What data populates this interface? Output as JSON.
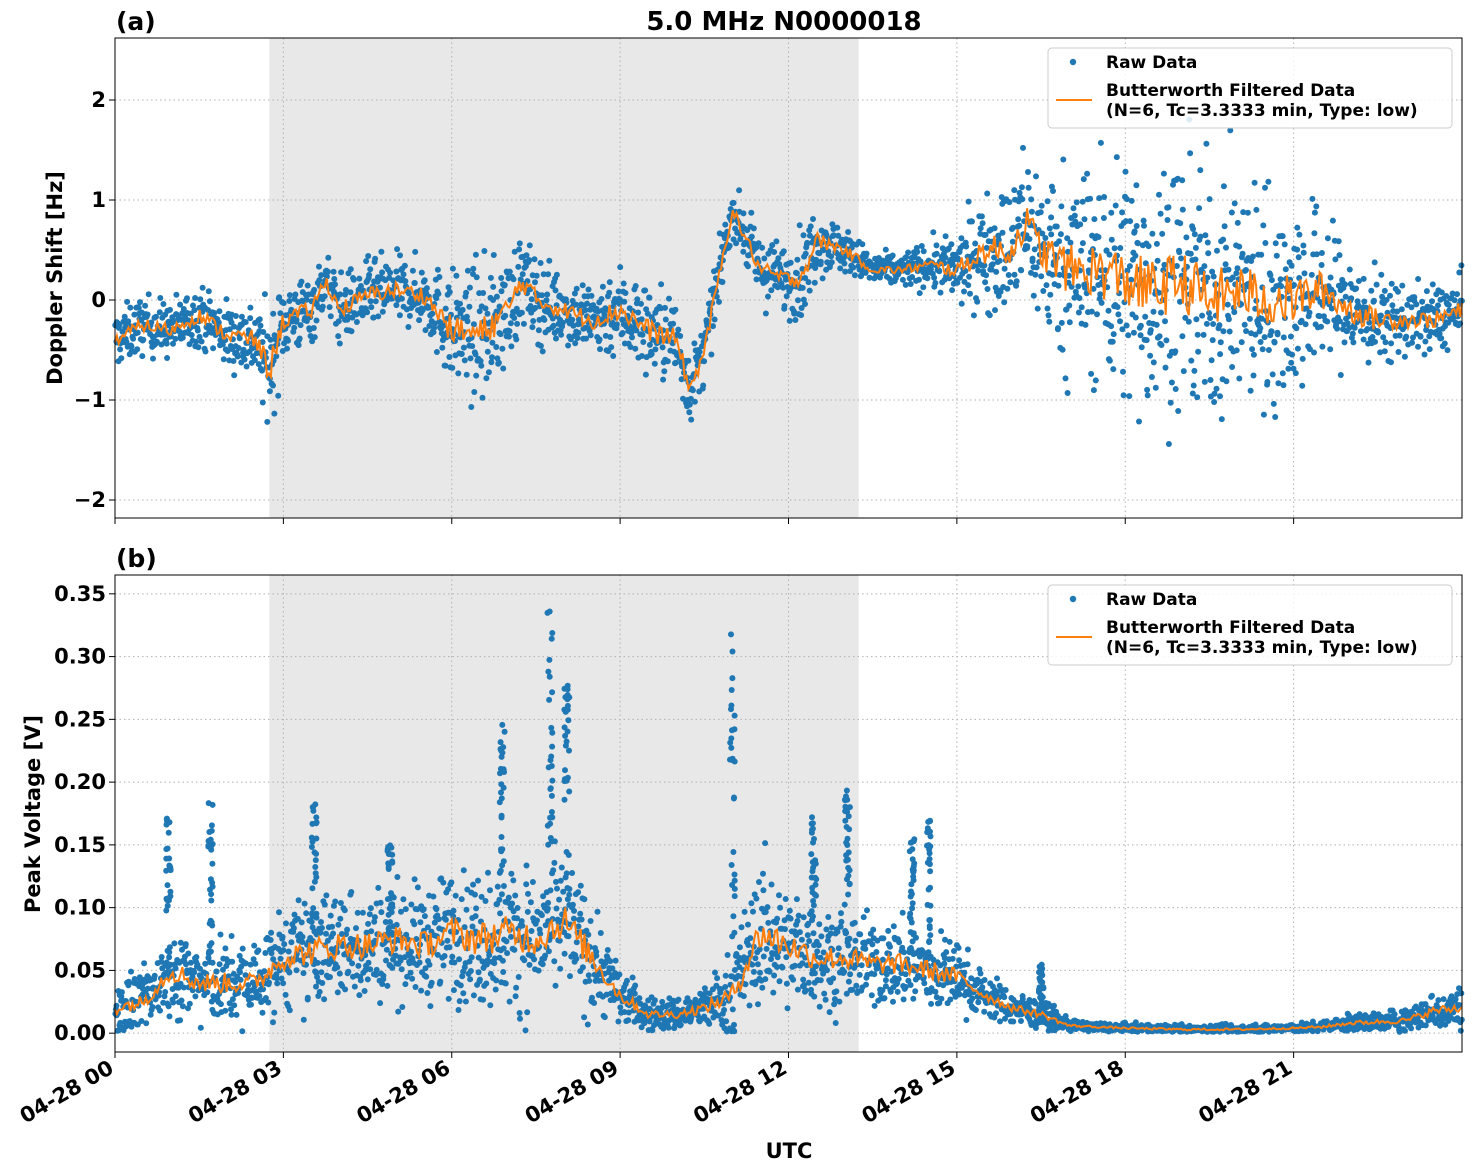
{
  "figure": {
    "title": "5.0 MHz N0000018",
    "xlabel": "UTC",
    "xticks": [
      "04-28 00",
      "04-28 03",
      "04-28 06",
      "04-28 09",
      "04-28 12",
      "04-28 15",
      "04-28 18",
      "04-28 21"
    ]
  },
  "colors": {
    "raw": "#1f77b4",
    "filtered": "#ff7f0e",
    "shade": "#e8e8e8"
  },
  "chart_data": [
    {
      "type": "scatter",
      "panel_label": "(a)",
      "title": "5.0 MHz N0000018",
      "xlabel": "",
      "ylabel": "Doppler Shift [Hz]",
      "xlim": [
        0,
        24
      ],
      "ylim": [
        -2.18,
        2.62
      ],
      "yticks": [
        -2,
        -1,
        0,
        1,
        2
      ],
      "yticklabels": [
        "−2",
        "−1",
        "0",
        "1",
        "2"
      ],
      "shaded_x": [
        2.75,
        13.25
      ],
      "grid": true,
      "legend_position": "upper right",
      "legend": [
        "Raw Data",
        "Butterworth Filtered Data",
        "(N=6, Tc=3.3333 min, Type: low)"
      ],
      "series": [
        {
          "name": "Butterworth Filtered Data (N=6, Tc=3.3333 min, Type: low)",
          "x": [
            0,
            0.5,
            1,
            1.5,
            2,
            2.5,
            2.75,
            3,
            3.5,
            3.75,
            4,
            4.5,
            5,
            5.5,
            6,
            6.5,
            7,
            7.25,
            7.5,
            8,
            8.5,
            9,
            9.5,
            10,
            10.25,
            10.5,
            11,
            11.5,
            12,
            12.25,
            12.5,
            13,
            13.5,
            14,
            14.5,
            15,
            15.5,
            16,
            16.2,
            16.5,
            17,
            17.5,
            18,
            18.5,
            19,
            19.5,
            20,
            20.5,
            21,
            21.5,
            22,
            22.5,
            23,
            23.5,
            24
          ],
          "y": [
            -0.4,
            -0.25,
            -0.3,
            -0.15,
            -0.35,
            -0.4,
            -0.7,
            -0.2,
            -0.1,
            0.2,
            -0.1,
            0.05,
            0.1,
            0.05,
            -0.3,
            -0.35,
            -0.1,
            0.2,
            0.0,
            -0.1,
            -0.2,
            -0.1,
            -0.3,
            -0.4,
            -0.9,
            -0.5,
            0.9,
            0.3,
            0.2,
            0.25,
            0.6,
            0.5,
            0.3,
            0.3,
            0.35,
            0.3,
            0.5,
            0.5,
            0.8,
            0.5,
            0.3,
            0.3,
            0.2,
            0.1,
            0.2,
            0.0,
            0.1,
            0.0,
            0.0,
            0.1,
            -0.1,
            -0.2,
            -0.2,
            -0.2,
            -0.1
          ]
        },
        {
          "name": "Raw Data",
          "x": [
            0,
            0.5,
            1,
            1.5,
            2,
            2.5,
            2.75,
            3,
            3.5,
            3.75,
            4,
            4.5,
            5,
            5.5,
            6,
            6.5,
            7,
            7.25,
            7.5,
            8,
            8.5,
            9,
            9.5,
            10,
            10.25,
            10.5,
            11,
            11.5,
            12,
            12.25,
            12.5,
            13,
            13.5,
            14,
            14.5,
            15,
            15.5,
            16,
            16.2,
            16.5,
            17,
            17.5,
            18,
            18.5,
            19,
            19.5,
            20,
            20.5,
            21,
            21.5,
            22,
            22.5,
            23,
            23.5,
            24
          ],
          "y": [
            -0.4,
            -0.25,
            -0.3,
            -0.15,
            -0.35,
            -0.4,
            -0.7,
            -0.2,
            -0.1,
            0.2,
            -0.1,
            0.05,
            0.1,
            0.05,
            -0.3,
            -0.35,
            -0.1,
            0.2,
            0.0,
            -0.1,
            -0.2,
            -0.1,
            -0.3,
            -0.4,
            -0.9,
            -0.5,
            0.9,
            0.3,
            0.2,
            0.25,
            0.6,
            0.5,
            0.3,
            0.3,
            0.35,
            0.3,
            0.5,
            0.5,
            0.8,
            0.5,
            0.3,
            0.3,
            0.2,
            0.1,
            0.2,
            0.0,
            0.1,
            0.0,
            0.0,
            0.1,
            -0.1,
            -0.2,
            -0.2,
            -0.2,
            -0.1
          ],
          "spread": [
            0.25,
            0.25,
            0.25,
            0.25,
            0.3,
            0.35,
            0.5,
            0.35,
            0.3,
            0.25,
            0.3,
            0.3,
            0.3,
            0.3,
            0.5,
            0.6,
            0.5,
            0.4,
            0.4,
            0.3,
            0.35,
            0.4,
            0.4,
            0.4,
            0.3,
            0.3,
            0.2,
            0.3,
            0.3,
            0.4,
            0.3,
            0.2,
            0.15,
            0.15,
            0.2,
            0.3,
            0.5,
            0.6,
            0.7,
            0.7,
            0.9,
            1.0,
            1.1,
            1.1,
            1.1,
            1.1,
            1.0,
            1.0,
            0.9,
            0.7,
            0.5,
            0.4,
            0.3,
            0.3,
            0.3
          ]
        }
      ]
    },
    {
      "type": "scatter",
      "panel_label": "(b)",
      "title": "",
      "xlabel": "UTC",
      "ylabel": "Peak Voltage [V]",
      "xlim": [
        0,
        24
      ],
      "ylim": [
        -0.015,
        0.365
      ],
      "yticks": [
        0,
        0.05,
        0.1,
        0.15,
        0.2,
        0.25,
        0.3,
        0.35
      ],
      "yticklabels": [
        "0.00",
        "0.05",
        "0.10",
        "0.15",
        "0.20",
        "0.25",
        "0.30",
        "0.35"
      ],
      "shaded_x": [
        2.75,
        13.25
      ],
      "grid": true,
      "legend_position": "upper right",
      "legend": [
        "Raw Data",
        "Butterworth Filtered Data",
        "(N=6, Tc=3.3333 min, Type: low)"
      ],
      "series": [
        {
          "name": "Butterworth Filtered Data (N=6, Tc=3.3333 min, Type: low)",
          "x": [
            0,
            0.5,
            1,
            1.5,
            2,
            2.5,
            3,
            3.5,
            4,
            4.5,
            5,
            5.5,
            6,
            6.5,
            7,
            7.5,
            8,
            8.5,
            9,
            9.5,
            10,
            10.5,
            11,
            11.5,
            12,
            12.5,
            13,
            13.5,
            14,
            14.5,
            15,
            15.5,
            16,
            16.5,
            17,
            17.5,
            18,
            19,
            20,
            21,
            21.5,
            22,
            23,
            23.5,
            24
          ],
          "y": [
            0.02,
            0.025,
            0.05,
            0.04,
            0.04,
            0.04,
            0.06,
            0.065,
            0.07,
            0.07,
            0.075,
            0.07,
            0.08,
            0.075,
            0.08,
            0.075,
            0.09,
            0.06,
            0.03,
            0.015,
            0.015,
            0.02,
            0.03,
            0.08,
            0.07,
            0.06,
            0.06,
            0.055,
            0.055,
            0.05,
            0.045,
            0.03,
            0.02,
            0.015,
            0.006,
            0.005,
            0.004,
            0.003,
            0.003,
            0.004,
            0.005,
            0.008,
            0.01,
            0.018,
            0.02
          ]
        },
        {
          "name": "Raw Data",
          "x": [
            0,
            0.5,
            1,
            1.5,
            2,
            2.5,
            3,
            3.5,
            4,
            4.5,
            5,
            5.5,
            6,
            6.5,
            7,
            7.5,
            8,
            8.5,
            9,
            9.5,
            10,
            10.5,
            11,
            11.5,
            12,
            12.5,
            13,
            13.5,
            14,
            14.5,
            15,
            15.5,
            16,
            16.5,
            17,
            17.5,
            18,
            19,
            20,
            21,
            21.5,
            22,
            23,
            23.5,
            24
          ],
          "y": [
            0.02,
            0.025,
            0.05,
            0.04,
            0.04,
            0.04,
            0.06,
            0.065,
            0.07,
            0.07,
            0.075,
            0.07,
            0.08,
            0.075,
            0.08,
            0.075,
            0.09,
            0.06,
            0.03,
            0.015,
            0.015,
            0.02,
            0.03,
            0.08,
            0.07,
            0.06,
            0.06,
            0.055,
            0.055,
            0.05,
            0.045,
            0.03,
            0.02,
            0.015,
            0.006,
            0.005,
            0.004,
            0.003,
            0.003,
            0.004,
            0.005,
            0.008,
            0.01,
            0.018,
            0.02
          ],
          "spread": [
            0.02,
            0.02,
            0.03,
            0.03,
            0.03,
            0.03,
            0.035,
            0.04,
            0.04,
            0.04,
            0.04,
            0.04,
            0.045,
            0.05,
            0.05,
            0.05,
            0.05,
            0.04,
            0.02,
            0.012,
            0.012,
            0.015,
            0.03,
            0.05,
            0.04,
            0.035,
            0.035,
            0.03,
            0.03,
            0.03,
            0.025,
            0.015,
            0.012,
            0.01,
            0.004,
            0.003,
            0.003,
            0.003,
            0.003,
            0.003,
            0.004,
            0.006,
            0.008,
            0.012,
            0.015
          ],
          "peaks": [
            [
              0.95,
              0.175
            ],
            [
              1.7,
              0.185
            ],
            [
              3.55,
              0.185
            ],
            [
              4.9,
              0.15
            ],
            [
              6.9,
              0.255
            ],
            [
              7.75,
              0.345
            ],
            [
              8.05,
              0.285
            ],
            [
              11.0,
              0.32
            ],
            [
              12.45,
              0.175
            ],
            [
              13.05,
              0.195
            ],
            [
              14.2,
              0.16
            ],
            [
              14.5,
              0.17
            ],
            [
              16.5,
              0.055
            ]
          ]
        }
      ]
    }
  ]
}
